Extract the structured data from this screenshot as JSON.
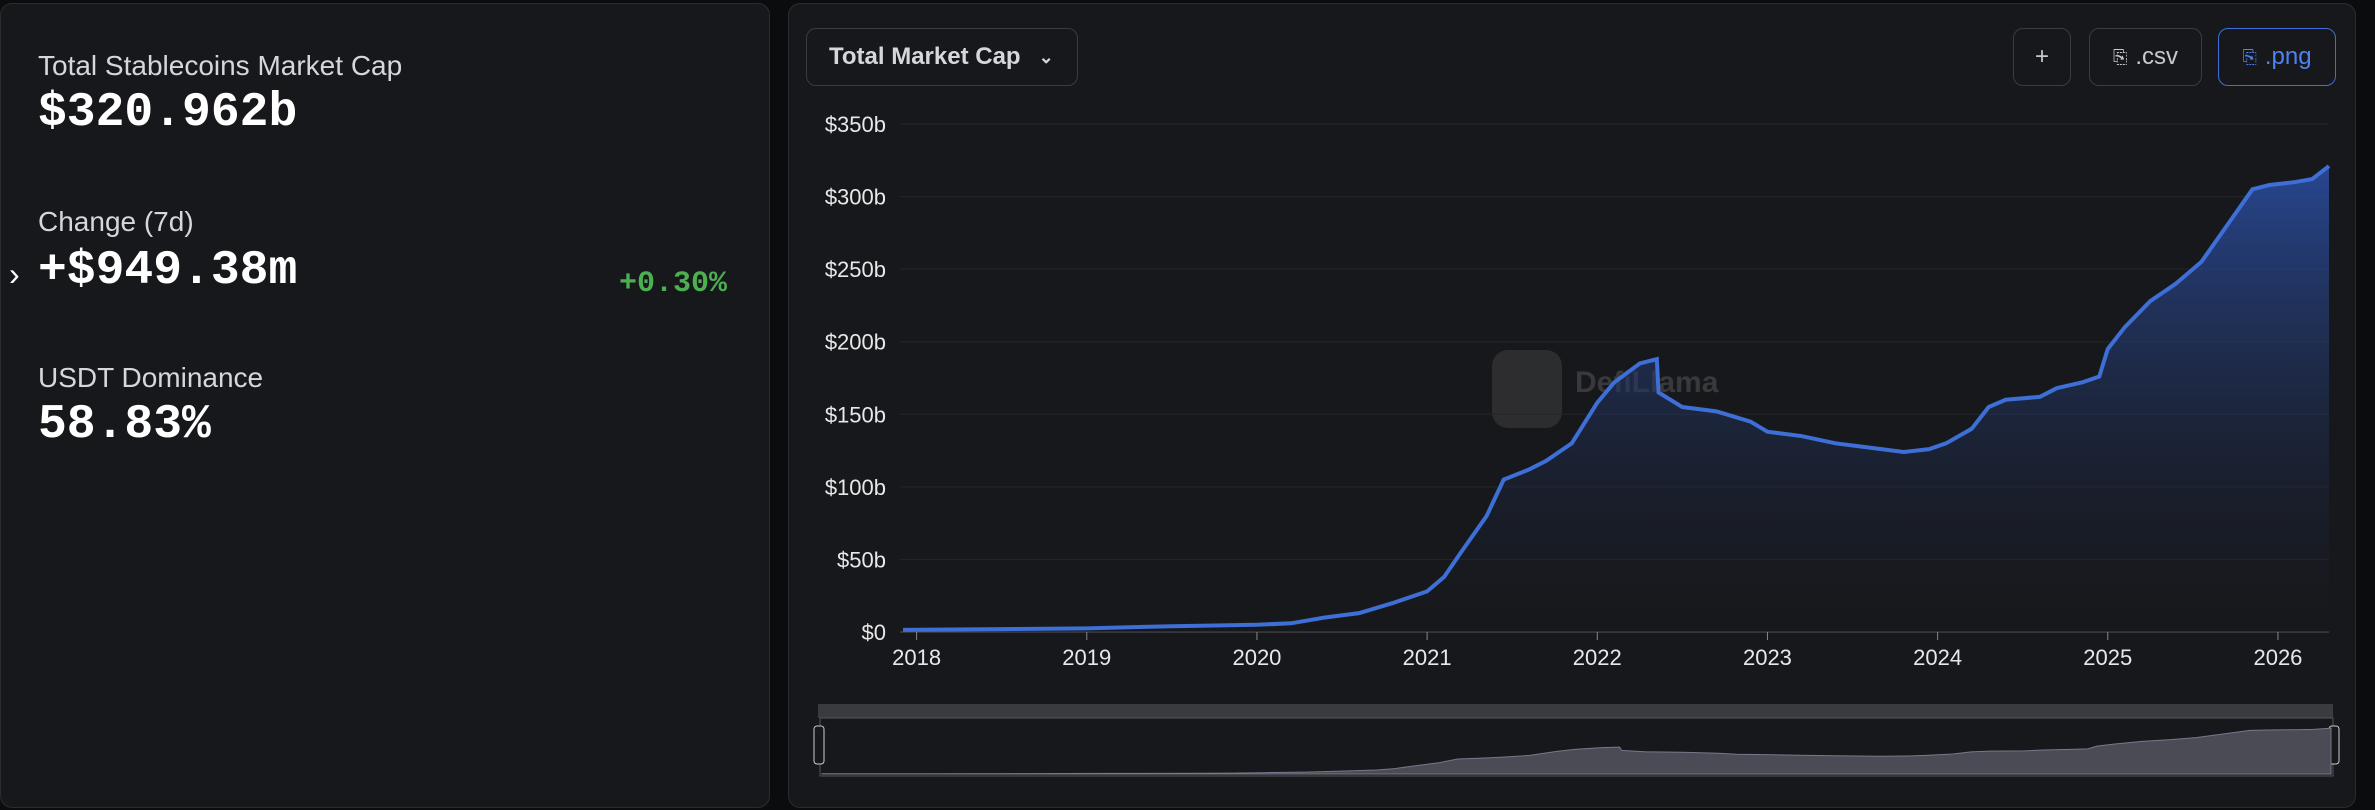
{
  "stats": {
    "market_cap_label": "Total Stablecoins Market Cap",
    "market_cap_value": "$320.962b",
    "change_label": "Change (7d)",
    "change_value": "+$949.38m",
    "change_percent": "+0.30%",
    "dominance_label": "USDT Dominance",
    "dominance_value": "58.83%"
  },
  "controls": {
    "dropdown": "Total Market Cap",
    "add": "+",
    "csv": ".csv",
    "png": ".png"
  },
  "watermark": "DefiLlama",
  "chart_data": {
    "type": "area",
    "x": [
      2017.92,
      2018.5,
      2019.0,
      2019.5,
      2020.0,
      2020.2,
      2020.4,
      2020.6,
      2020.8,
      2021.0,
      2021.1,
      2021.2,
      2021.35,
      2021.45,
      2021.6,
      2021.7,
      2021.85,
      2022.0,
      2022.1,
      2022.25,
      2022.35,
      2022.36,
      2022.5,
      2022.7,
      2022.9,
      2023.0,
      2023.2,
      2023.4,
      2023.6,
      2023.8,
      2023.95,
      2024.05,
      2024.2,
      2024.3,
      2024.4,
      2024.6,
      2024.7,
      2024.85,
      2024.95,
      2025.0,
      2025.1,
      2025.25,
      2025.4,
      2025.55,
      2025.7,
      2025.85,
      2025.95,
      2026.1,
      2026.2,
      2026.3
    ],
    "series": [
      {
        "name": "Total Market Cap",
        "color": "#3d6fd6",
        "values": [
          1.5,
          2,
          2.5,
          4,
          5,
          6,
          10,
          13,
          20,
          28,
          38,
          55,
          80,
          105,
          112,
          118,
          130,
          158,
          172,
          185,
          188,
          165,
          155,
          152,
          145,
          138,
          135,
          130,
          127,
          124,
          126,
          130,
          140,
          155,
          160,
          162,
          168,
          172,
          176,
          195,
          210,
          228,
          240,
          255,
          280,
          305,
          308,
          310,
          312,
          321
        ]
      }
    ],
    "xlim": [
      2017.92,
      2026.3
    ],
    "xticks": [
      2018,
      2019,
      2020,
      2021,
      2022,
      2023,
      2024,
      2025,
      2026
    ],
    "ylim": [
      0,
      350
    ],
    "yticks": [
      {
        "value": 0,
        "label": "$0"
      },
      {
        "value": 50,
        "label": "$50b"
      },
      {
        "value": 100,
        "label": "$100b"
      },
      {
        "value": 150,
        "label": "$150b"
      },
      {
        "value": 200,
        "label": "$200b"
      },
      {
        "value": 250,
        "label": "$250b"
      },
      {
        "value": 300,
        "label": "$300b"
      },
      {
        "value": 350,
        "label": "$350b"
      }
    ],
    "grid": true
  }
}
